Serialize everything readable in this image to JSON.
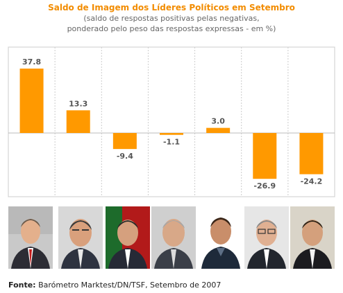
{
  "chart_data": {
    "type": "bar",
    "title": "Saldo de Imagem dos Líderes Políticos em Setembro",
    "subtitle_lines": [
      "(saldo de respostas positivas pelas negativas,",
      "ponderado pelo peso das respostas expressas - em %)"
    ],
    "values": [
      37.8,
      13.3,
      -9.4,
      -1.1,
      3.0,
      -26.9,
      -24.2
    ],
    "value_labels": [
      "37.8",
      "13.3",
      "-9.4",
      "-1.1",
      "3.0",
      "-26.9",
      "-24.2"
    ],
    "categories": [
      "",
      "",
      "",
      "",
      "",
      "",
      ""
    ],
    "ylim": [
      -32,
      50
    ],
    "grid": true,
    "bar_color": "#ff9900"
  },
  "footer": {
    "label": "Fonte:",
    "text": "Barómetro Marktest/DN/TSF, Setembro de 2007"
  },
  "colors": {
    "title": "#f28c00",
    "subtitle": "#666666",
    "grid": "#cccccc"
  }
}
